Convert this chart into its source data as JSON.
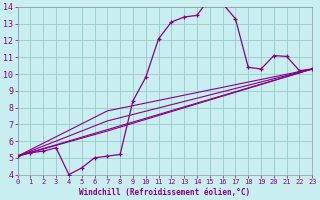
{
  "xlabel": "Windchill (Refroidissement éolien,°C)",
  "bg_color": "#c8eef0",
  "line_color": "#880088",
  "grid_color": "#99cccc",
  "border_color": "#8899aa",
  "xmin": 0,
  "xmax": 23,
  "ymin": 4,
  "ymax": 14,
  "curve_x": [
    0,
    1,
    2,
    3,
    4,
    5,
    6,
    7,
    8,
    9,
    10,
    11,
    12,
    13,
    14,
    15,
    16,
    17,
    18,
    19,
    20,
    21,
    22,
    23
  ],
  "curve_y": [
    5.1,
    5.3,
    5.4,
    5.6,
    4.0,
    4.4,
    5.0,
    5.1,
    5.2,
    8.4,
    9.8,
    12.1,
    13.1,
    13.4,
    13.5,
    14.55,
    14.2,
    13.3,
    10.4,
    10.3,
    11.1,
    11.05,
    10.2,
    10.3
  ],
  "ref_line1_x": [
    0,
    23
  ],
  "ref_line1_y": [
    5.1,
    10.3
  ],
  "ref_line2_x": [
    0,
    7,
    23
  ],
  "ref_line2_y": [
    5.1,
    7.8,
    10.3
  ],
  "ref_line3_x": [
    0,
    7,
    23
  ],
  "ref_line3_y": [
    5.1,
    7.2,
    10.3
  ],
  "ref_line4_x": [
    0,
    7,
    23
  ],
  "ref_line4_y": [
    5.1,
    6.6,
    10.3
  ]
}
